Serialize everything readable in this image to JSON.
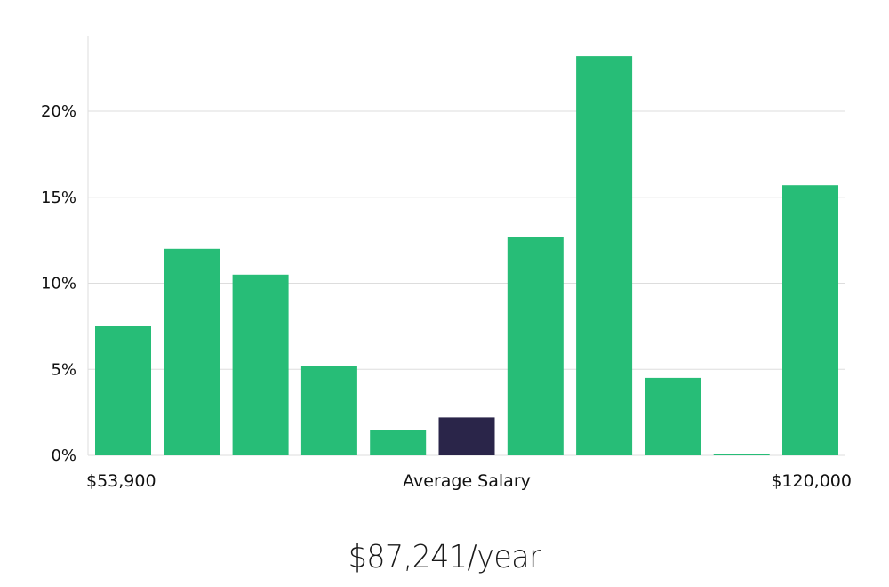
{
  "chart_data": {
    "type": "bar",
    "values": [
      7.5,
      12.0,
      10.5,
      5.2,
      1.5,
      2.2,
      12.7,
      23.2,
      4.5,
      0.05,
      15.7
    ],
    "highlight_index": 5,
    "ylim": [
      0,
      24
    ],
    "yticks": [
      0,
      5,
      10,
      15,
      20
    ],
    "ytick_labels": [
      "0%",
      "5%",
      "10%",
      "15%",
      "20%"
    ],
    "x_min_label": "$53,900",
    "x_center_label": "Average Salary",
    "x_max_label": "$120,000",
    "grid": true,
    "colors": {
      "bar": "#27bd77",
      "highlight": "#2a2549",
      "grid": "#dddddd",
      "axis": "#dddddd"
    }
  },
  "summary": {
    "salary_text": "$87,241/year"
  }
}
